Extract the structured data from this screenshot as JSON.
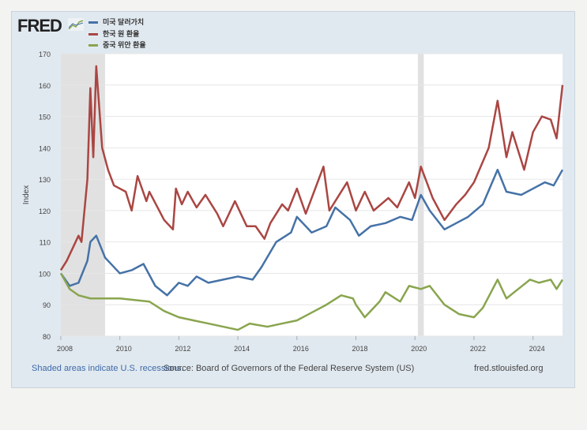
{
  "logo": "FRED",
  "footer": {
    "recession_note": "Shaded areas indicate U.S. recessions.",
    "source": "Source: Board of Governors of the Federal Reserve System (US)",
    "site": "fred.stlouisfed.org"
  },
  "chart_data": {
    "type": "line",
    "ylabel": "Index",
    "ylim": [
      80,
      170
    ],
    "yticks": [
      80,
      90,
      100,
      110,
      120,
      130,
      140,
      150,
      160,
      170
    ],
    "xlim": [
      2008,
      2025
    ],
    "xticks": [
      2008,
      2010,
      2012,
      2014,
      2016,
      2018,
      2020,
      2022,
      2024
    ],
    "recessions": [
      [
        2008.0,
        2009.5
      ],
      [
        2020.1,
        2020.3
      ]
    ],
    "legend_placement": "top-left",
    "series": [
      {
        "name": "미국 달러가치",
        "color": "#4572a7",
        "points": [
          [
            2008,
            100
          ],
          [
            2008.3,
            96
          ],
          [
            2008.6,
            97
          ],
          [
            2008.9,
            104
          ],
          [
            2009.0,
            110
          ],
          [
            2009.2,
            112
          ],
          [
            2009.5,
            105
          ],
          [
            2010,
            100
          ],
          [
            2010.4,
            101
          ],
          [
            2010.8,
            103
          ],
          [
            2011.2,
            96
          ],
          [
            2011.6,
            93
          ],
          [
            2012,
            97
          ],
          [
            2012.3,
            96
          ],
          [
            2012.6,
            99
          ],
          [
            2013,
            97
          ],
          [
            2013.5,
            98
          ],
          [
            2014,
            99
          ],
          [
            2014.5,
            98
          ],
          [
            2014.8,
            102
          ],
          [
            2015.3,
            110
          ],
          [
            2015.8,
            113
          ],
          [
            2016,
            118
          ],
          [
            2016.5,
            113
          ],
          [
            2017,
            115
          ],
          [
            2017.3,
            121
          ],
          [
            2017.8,
            117
          ],
          [
            2018.1,
            112
          ],
          [
            2018.5,
            115
          ],
          [
            2019,
            116
          ],
          [
            2019.5,
            118
          ],
          [
            2019.9,
            117
          ],
          [
            2020.2,
            125
          ],
          [
            2020.5,
            120
          ],
          [
            2021,
            114
          ],
          [
            2021.4,
            116
          ],
          [
            2021.8,
            118
          ],
          [
            2022.3,
            122
          ],
          [
            2022.8,
            133
          ],
          [
            2023.1,
            126
          ],
          [
            2023.6,
            125
          ],
          [
            2024,
            127
          ],
          [
            2024.4,
            129
          ],
          [
            2024.7,
            128
          ],
          [
            2025,
            133
          ]
        ]
      },
      {
        "name": "한국 원 환율",
        "color": "#aa4643",
        "points": [
          [
            2008,
            101
          ],
          [
            2008.2,
            104
          ],
          [
            2008.6,
            112
          ],
          [
            2008.7,
            110
          ],
          [
            2008.9,
            130
          ],
          [
            2009.0,
            159
          ],
          [
            2009.1,
            137
          ],
          [
            2009.2,
            166
          ],
          [
            2009.4,
            140
          ],
          [
            2009.6,
            133
          ],
          [
            2009.8,
            128
          ],
          [
            2010.2,
            126
          ],
          [
            2010.4,
            120
          ],
          [
            2010.6,
            131
          ],
          [
            2010.9,
            123
          ],
          [
            2011,
            126
          ],
          [
            2011.5,
            117
          ],
          [
            2011.8,
            114
          ],
          [
            2011.9,
            127
          ],
          [
            2012.1,
            122
          ],
          [
            2012.3,
            126
          ],
          [
            2012.6,
            121
          ],
          [
            2012.9,
            125
          ],
          [
            2013.3,
            119
          ],
          [
            2013.5,
            115
          ],
          [
            2013.9,
            123
          ],
          [
            2014.3,
            115
          ],
          [
            2014.6,
            115
          ],
          [
            2014.9,
            111
          ],
          [
            2015.1,
            116
          ],
          [
            2015.5,
            122
          ],
          [
            2015.7,
            120
          ],
          [
            2016,
            127
          ],
          [
            2016.3,
            119
          ],
          [
            2016.9,
            134
          ],
          [
            2017.1,
            120
          ],
          [
            2017.7,
            129
          ],
          [
            2018,
            120
          ],
          [
            2018.3,
            126
          ],
          [
            2018.6,
            120
          ],
          [
            2019.1,
            124
          ],
          [
            2019.4,
            121
          ],
          [
            2019.8,
            129
          ],
          [
            2020,
            124
          ],
          [
            2020.2,
            134
          ],
          [
            2020.6,
            124
          ],
          [
            2021,
            117
          ],
          [
            2021.4,
            122
          ],
          [
            2021.7,
            125
          ],
          [
            2022,
            129
          ],
          [
            2022.5,
            140
          ],
          [
            2022.8,
            155
          ],
          [
            2023.1,
            137
          ],
          [
            2023.3,
            145
          ],
          [
            2023.7,
            133
          ],
          [
            2024,
            145
          ],
          [
            2024.3,
            150
          ],
          [
            2024.6,
            149
          ],
          [
            2024.8,
            143
          ],
          [
            2025,
            160
          ]
        ]
      },
      {
        "name": "중국 위안 환율",
        "color": "#89a54e",
        "points": [
          [
            2008,
            100
          ],
          [
            2008.3,
            95
          ],
          [
            2008.6,
            93
          ],
          [
            2009,
            92
          ],
          [
            2010,
            92
          ],
          [
            2011,
            91
          ],
          [
            2011.5,
            88
          ],
          [
            2012,
            86
          ],
          [
            2012.5,
            85
          ],
          [
            2013,
            84
          ],
          [
            2013.5,
            83
          ],
          [
            2014,
            82
          ],
          [
            2014.4,
            84
          ],
          [
            2015,
            83
          ],
          [
            2015.5,
            84
          ],
          [
            2016,
            85
          ],
          [
            2016.6,
            88
          ],
          [
            2017,
            90
          ],
          [
            2017.5,
            93
          ],
          [
            2017.9,
            92
          ],
          [
            2018,
            90
          ],
          [
            2018.3,
            86
          ],
          [
            2018.8,
            91
          ],
          [
            2019,
            94
          ],
          [
            2019.5,
            91
          ],
          [
            2019.8,
            96
          ],
          [
            2020.2,
            95
          ],
          [
            2020.5,
            96
          ],
          [
            2021,
            90
          ],
          [
            2021.5,
            87
          ],
          [
            2022,
            86
          ],
          [
            2022.3,
            89
          ],
          [
            2022.8,
            98
          ],
          [
            2023.1,
            92
          ],
          [
            2023.5,
            95
          ],
          [
            2023.9,
            98
          ],
          [
            2024.2,
            97
          ],
          [
            2024.6,
            98
          ],
          [
            2024.8,
            95
          ],
          [
            2025,
            98
          ]
        ]
      }
    ]
  }
}
